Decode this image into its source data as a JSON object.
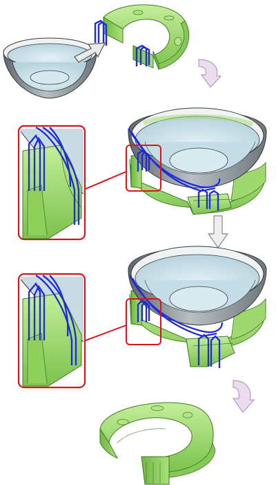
{
  "colors": {
    "background": "#ffffff",
    "bowl_outer": "#8e969a",
    "bowl_inner": "#cfe3ec",
    "bowl_rim": "#f2f4f5",
    "fixture_fill": "#9fdc6a",
    "fixture_dark": "#62b03a",
    "fixture_edge": "#3f7a22",
    "wire": "#1f2bd6",
    "callout": "#d7161b",
    "arrow_fill": "#ecdcf0",
    "arrow_edge": "#b49bbd",
    "down_arrow_fill": "#eeeeee",
    "down_arrow_edge": "#888888"
  },
  "icons": {
    "step1_arrow": "right-arrow-icon",
    "step2_arrow": "curved-arrow-icon",
    "step3_arrow": "down-arrow-icon",
    "step4_arrow": "curved-arrow-icon"
  },
  "steps": [
    {
      "id": "bowl-and-fixture-separate"
    },
    {
      "id": "bowl-placed-initial"
    },
    {
      "id": "bowl-placed-adjusted"
    },
    {
      "id": "fixture-alone"
    }
  ]
}
